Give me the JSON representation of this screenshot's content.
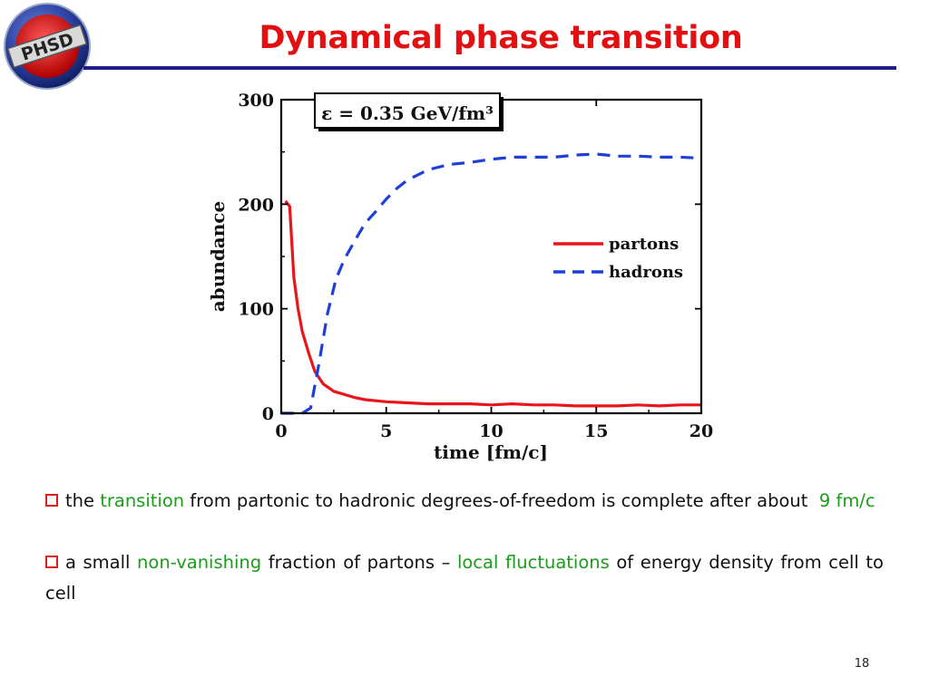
{
  "slide": {
    "title": "Dynamical phase transition",
    "logo_text": "PHSD",
    "page_number": "18",
    "colors": {
      "title": "#e21010",
      "rule": "#1f1f8c",
      "highlight": "#1a9e1a",
      "bullet_box": "#d42020"
    }
  },
  "bullets": [
    {
      "parts": [
        {
          "text": "the ",
          "highlight": false
        },
        {
          "text": "transition",
          "highlight": true
        },
        {
          "text": " from partonic to hadronic degrees-of-freedom is complete after about ",
          "highlight": false
        },
        {
          "text": "9 fm/c",
          "highlight": true
        }
      ]
    },
    {
      "parts": [
        {
          "text": "a small ",
          "highlight": false
        },
        {
          "text": "non-vanishing",
          "highlight": true
        },
        {
          "text": " fraction of partons – ",
          "highlight": false
        },
        {
          "text": "local fluctuations",
          "highlight": true
        },
        {
          "text": " of energy density from cell to cell",
          "highlight": false
        }
      ]
    }
  ],
  "chart_data": {
    "type": "line",
    "annotation": "ε = 0.35 GeV/fm³",
    "xlabel": "time [fm/c]",
    "ylabel": "abundance",
    "xlim": [
      0,
      20
    ],
    "ylim": [
      0,
      300
    ],
    "xticks": [
      0,
      5,
      10,
      15,
      20
    ],
    "yticks": [
      0,
      100,
      200,
      300
    ],
    "legend_position": "center-right",
    "series": [
      {
        "name": "partons",
        "color": "#e8161b",
        "dash": "solid",
        "x": [
          0.2,
          0.4,
          0.6,
          0.8,
          1.0,
          1.3,
          1.6,
          2.0,
          2.5,
          3.0,
          3.5,
          4.0,
          4.5,
          5.0,
          6.0,
          7.0,
          8.0,
          9.0,
          10.0,
          11.0,
          12.0,
          13.0,
          14.0,
          15.0,
          16.0,
          17.0,
          18.0,
          19.0,
          20.0
        ],
        "y": [
          203,
          198,
          130,
          100,
          78,
          58,
          40,
          28,
          21,
          18,
          15,
          13,
          12,
          11,
          10,
          9,
          9,
          9,
          8,
          9,
          8,
          8,
          7,
          7,
          7,
          8,
          7,
          8,
          8
        ]
      },
      {
        "name": "hadrons",
        "color": "#1f3fd8",
        "dash": "dashed",
        "x": [
          0.0,
          0.5,
          1.0,
          1.4,
          1.8,
          2.2,
          2.6,
          3.0,
          3.5,
          4.0,
          4.5,
          5.0,
          5.5,
          6.0,
          7.0,
          8.0,
          9.0,
          10.0,
          11.0,
          12.0,
          13.0,
          14.0,
          15.0,
          16.0,
          17.0,
          18.0,
          19.0,
          20.0
        ],
        "y": [
          0,
          0,
          0,
          5,
          48,
          95,
          128,
          147,
          165,
          182,
          193,
          205,
          215,
          223,
          233,
          238,
          240,
          243,
          245,
          245,
          245,
          247,
          248,
          246,
          246,
          245,
          245,
          244
        ]
      }
    ]
  }
}
